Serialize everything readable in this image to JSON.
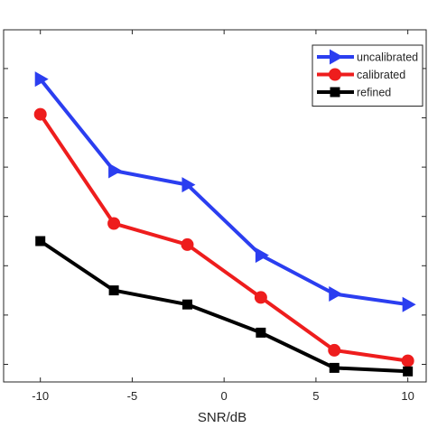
{
  "chart_data": {
    "type": "line",
    "xlabel": "SNR/dB",
    "ylabel": "",
    "title": "",
    "xlim": [
      -12,
      11
    ],
    "ylim": [
      0,
      1
    ],
    "x_ticks": [
      -10,
      -5,
      0,
      5,
      10
    ],
    "x_tick_labels": [
      "-10",
      "-5",
      "0",
      "5",
      "10"
    ],
    "y_ticks": [
      0.05,
      0.19,
      0.33,
      0.47,
      0.61,
      0.75,
      0.89
    ],
    "y_tick_labels": [
      "",
      "",
      "",
      "",
      "",
      "",
      ""
    ],
    "grid": false,
    "legend_position": "top-right",
    "x": [
      -10,
      -6,
      -2,
      2,
      6,
      10
    ],
    "series": [
      {
        "name": "uncalibrated",
        "color": "#2b3ef0",
        "marker": "triangle-right",
        "values": [
          0.86,
          0.6,
          0.56,
          0.36,
          0.25,
          0.22
        ]
      },
      {
        "name": "calibrated",
        "color": "#ee1d1d",
        "marker": "circle",
        "values": [
          0.76,
          0.45,
          0.39,
          0.24,
          0.09,
          0.06
        ]
      },
      {
        "name": "refined",
        "color": "#000000",
        "marker": "square",
        "values": [
          0.4,
          0.26,
          0.22,
          0.14,
          0.04,
          0.03
        ]
      }
    ]
  }
}
